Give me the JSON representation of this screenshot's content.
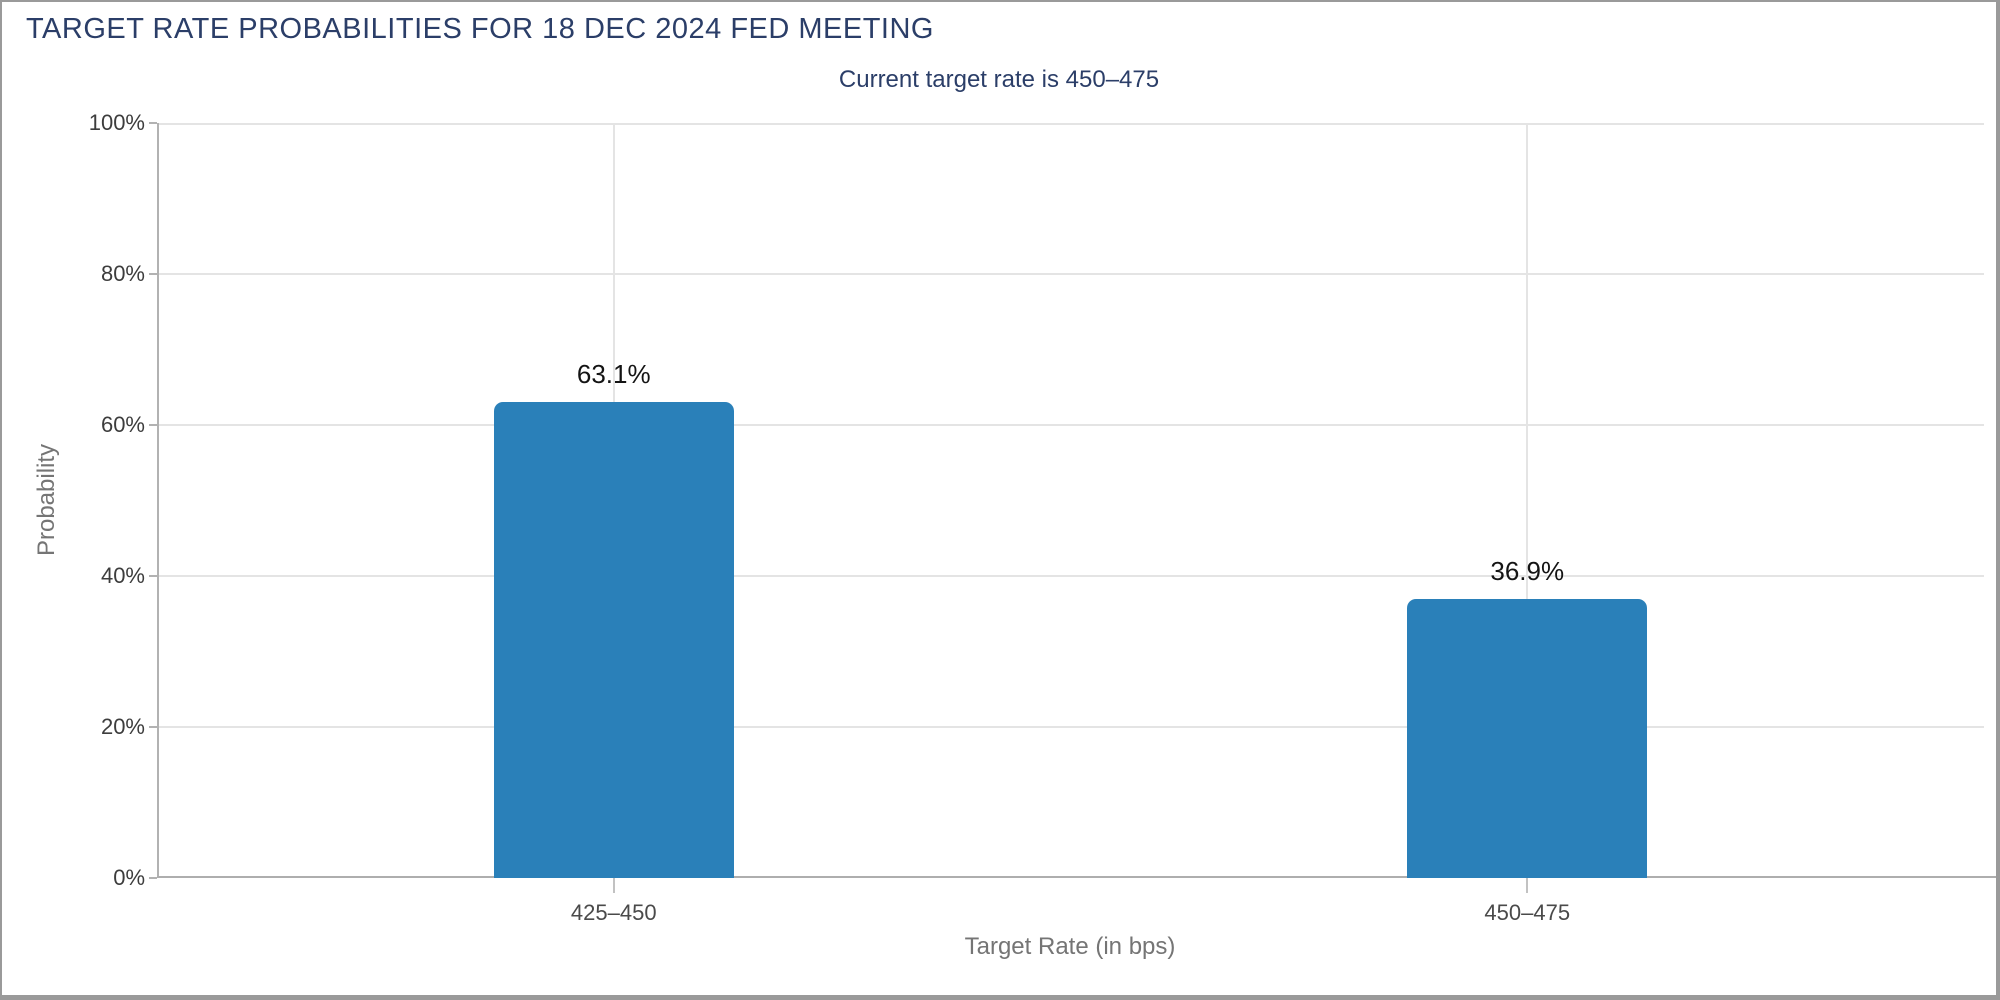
{
  "header": {
    "title": "TARGET RATE PROBABILITIES FOR 18 DEC 2024 FED MEETING",
    "subtitle": "Current target rate is 450–475"
  },
  "chart_data": {
    "type": "bar",
    "title": "TARGET RATE PROBABILITIES FOR 18 DEC 2024 FED MEETING",
    "subtitle": "Current target rate is 450–475",
    "categories": [
      "425–450",
      "450–475"
    ],
    "values": [
      63.1,
      36.9
    ],
    "value_labels": [
      "63.1%",
      "36.9%"
    ],
    "xlabel": "Target Rate (in bps)",
    "ylabel": "Probability",
    "ylim": [
      0,
      100
    ],
    "ytick_labels": [
      "0%",
      "20%",
      "40%",
      "60%",
      "80%",
      "100%"
    ],
    "grid": "horizontal gridlines every 20%, vertical gridline at each category center",
    "legend_position": "none",
    "bar_color": "#2a80b9"
  },
  "colors": {
    "title_navy": "#2b3e68",
    "bar_blue": "#2a80b9",
    "gridline": "#e4e4e4",
    "axis_line": "#b2b2b2",
    "outer_border": "#9a9a9a",
    "tick_text": "#3d3d3d",
    "axis_title_text": "#757575"
  }
}
